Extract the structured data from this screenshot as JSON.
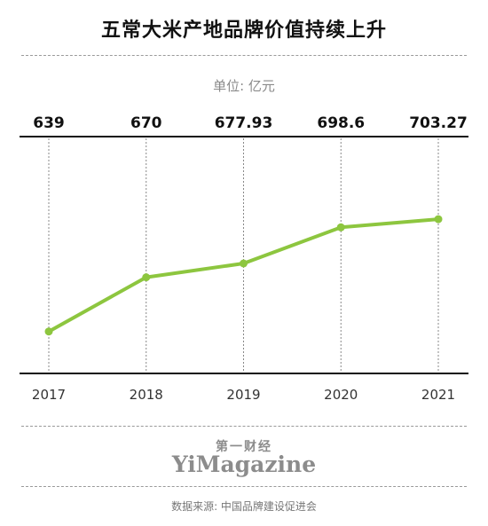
{
  "page": {
    "title": "五常大米产地品牌价值持续上升",
    "unit_label": "单位: 亿元",
    "brand_cn": "第一财经",
    "brand_en": "YiMagazine",
    "source": "数据来源: 中国品牌建设促进会"
  },
  "colors": {
    "line": "#8dc63f",
    "axis": "#111111",
    "gridline": "#888888"
  },
  "chart_data": {
    "type": "line",
    "title": "五常大米产地品牌价值持续上升",
    "ylabel": "单位: 亿元",
    "xlabel": "",
    "categories": [
      "2017",
      "2018",
      "2019",
      "2020",
      "2021"
    ],
    "series": [
      {
        "values": [
          639,
          670,
          677.93,
          698.6,
          703.27
        ]
      }
    ],
    "value_labels": [
      "639",
      "670",
      "677.93",
      "698.6",
      "703.27"
    ],
    "ylim": [
      615,
      750
    ],
    "grid": "vertical-dashed",
    "legend": "none"
  }
}
